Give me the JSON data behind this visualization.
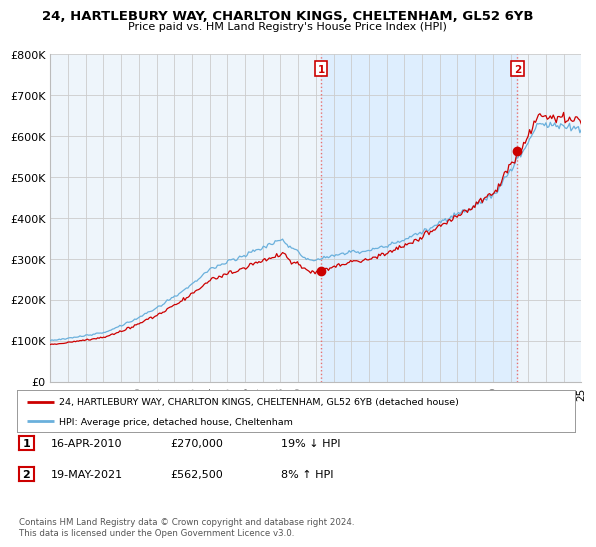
{
  "title": "24, HARTLEBURY WAY, CHARLTON KINGS, CHELTENHAM, GL52 6YB",
  "subtitle": "Price paid vs. HM Land Registry's House Price Index (HPI)",
  "ylim": [
    0,
    800000
  ],
  "yticks": [
    0,
    100000,
    200000,
    300000,
    400000,
    500000,
    600000,
    700000,
    800000
  ],
  "ytick_labels": [
    "£0",
    "£100K",
    "£200K",
    "£300K",
    "£400K",
    "£500K",
    "£600K",
    "£700K",
    "£800K"
  ],
  "x_start_year": 1995,
  "x_end_year": 2025,
  "hpi_color": "#6ab0dc",
  "price_color": "#cc0000",
  "sale1_year": 2010.29,
  "sale1_price": 270000,
  "sale2_year": 2021.38,
  "sale2_price": 562500,
  "vline_color": "#e87070",
  "vline_style": ":",
  "shade_color": "#ddeeff",
  "plot_bg_color": "#eef5fb",
  "grid_color": "#cccccc",
  "legend_label1": "24, HARTLEBURY WAY, CHARLTON KINGS, CHELTENHAM, GL52 6YB (detached house)",
  "legend_label2": "HPI: Average price, detached house, Cheltenham",
  "table_row1": [
    "1",
    "16-APR-2010",
    "£270,000",
    "19% ↓ HPI"
  ],
  "table_row2": [
    "2",
    "19-MAY-2021",
    "£562,500",
    "8% ↑ HPI"
  ],
  "footnote": "Contains HM Land Registry data © Crown copyright and database right 2024.\nThis data is licensed under the Open Government Licence v3.0.",
  "background_color": "#ffffff"
}
